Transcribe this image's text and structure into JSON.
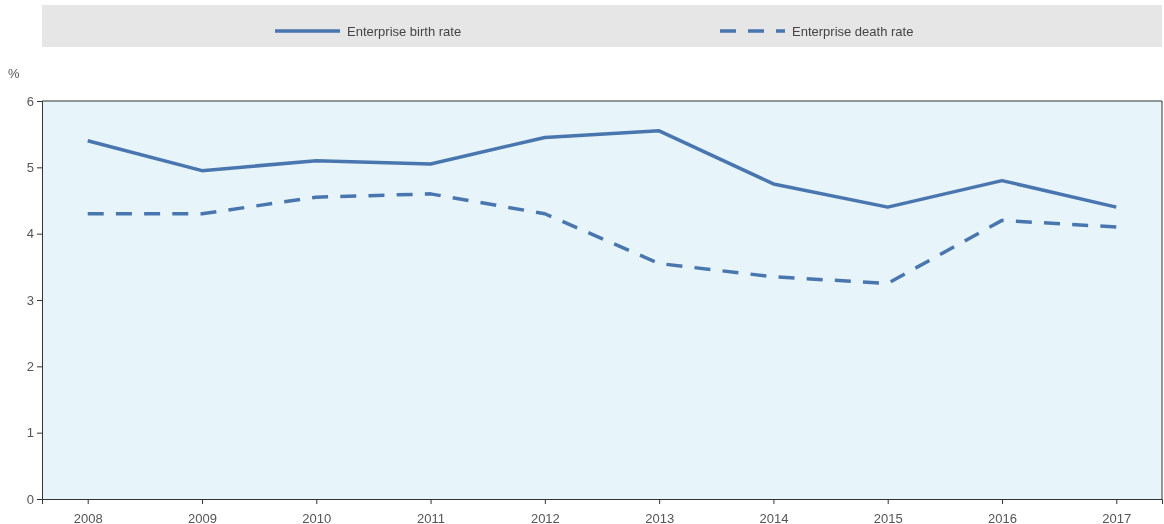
{
  "chart_data": {
    "type": "line",
    "ylabel": "%",
    "categories": [
      "2008",
      "2009",
      "2010",
      "2011",
      "2012",
      "2013",
      "2014",
      "2015",
      "2016",
      "2017"
    ],
    "series": [
      {
        "name": "Enterprise birth rate",
        "color": "#4a76b0",
        "line_style": "solid",
        "values": [
          5.4,
          4.95,
          5.1,
          5.05,
          5.45,
          5.55,
          4.75,
          4.4,
          4.8,
          4.4
        ]
      },
      {
        "name": "Enterprise death rate",
        "color": "#4a76b0",
        "line_style": "dashed",
        "values": [
          4.3,
          4.3,
          4.55,
          4.6,
          4.3,
          3.55,
          3.35,
          3.25,
          4.2,
          4.1
        ]
      }
    ],
    "ylim": [
      0,
      6
    ],
    "yticks": [
      0,
      1,
      2,
      3,
      4,
      5,
      6
    ],
    "grid": false,
    "legend": "top",
    "marker": "none"
  }
}
